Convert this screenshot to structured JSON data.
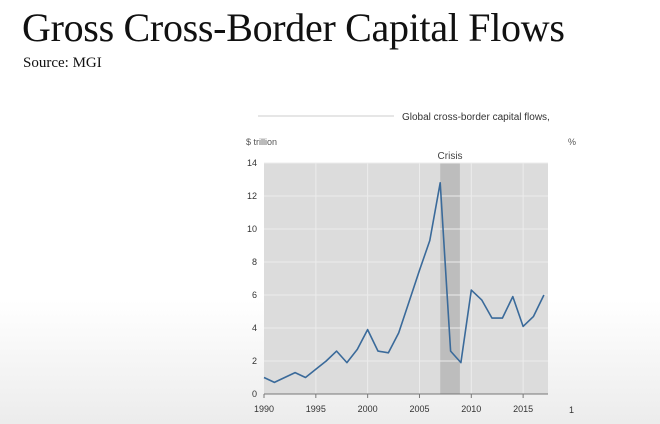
{
  "slide": {
    "title": "Gross Cross-Border Capital Flows",
    "source": "Source: MGI"
  },
  "chart_data": {
    "type": "line",
    "title": "Global cross-border capital flows,",
    "left_unit": "$ trillion",
    "right_unit": "%",
    "right_axis_partial_tick": "1",
    "annotation": "Crisis",
    "crisis_range": [
      2007,
      2008.9
    ],
    "xlim": [
      1990,
      2017.4
    ],
    "ylim": [
      0,
      14
    ],
    "x_ticks": [
      1990,
      1995,
      2000,
      2005,
      2010,
      2015
    ],
    "y_ticks": [
      0,
      2,
      4,
      6,
      8,
      10,
      12,
      14
    ],
    "grid": true,
    "line_color": "#3a6a9a",
    "series": [
      {
        "x": [
          1990,
          1991,
          1992,
          1993,
          1994,
          1995,
          1996,
          1997,
          1998,
          1999,
          2000,
          2001,
          2002,
          2003,
          2004,
          2005,
          2006,
          2007,
          2008,
          2009,
          2010,
          2011,
          2012,
          2013,
          2014,
          2015,
          2016,
          2017
        ],
        "values": [
          1.0,
          0.7,
          1.0,
          1.3,
          1.0,
          1.5,
          2.0,
          2.6,
          1.9,
          2.7,
          3.9,
          2.6,
          2.5,
          3.7,
          5.6,
          7.5,
          9.3,
          12.8,
          2.6,
          1.9,
          6.3,
          5.7,
          4.6,
          4.6,
          5.9,
          4.1,
          4.7,
          6.0
        ]
      }
    ]
  }
}
